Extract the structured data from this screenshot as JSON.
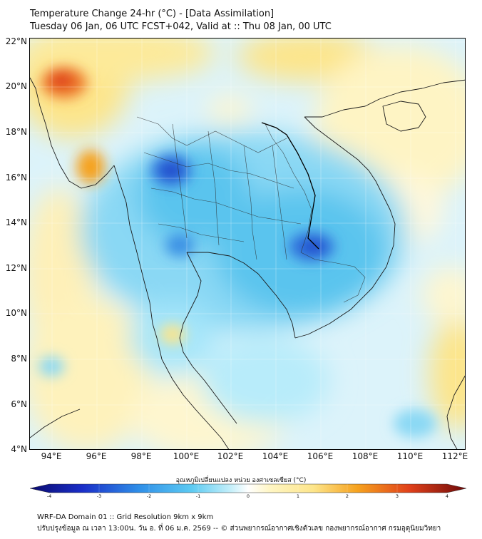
{
  "title_line1": "Temperature Change 24-hr (°C) - [Data Assimilation]",
  "title_line2": "Tuesday 06 Jan, 06 UTC FCST+042, Valid at :: Thu 08 Jan, 00 UTC",
  "lat_labels": [
    "22°N",
    "20°N",
    "18°N",
    "16°N",
    "14°N",
    "12°N",
    "10°N",
    "8°N",
    "6°N",
    "4°N"
  ],
  "lon_labels": [
    "94°E",
    "96°E",
    "98°E",
    "100°E",
    "102°E",
    "104°E",
    "106°E",
    "108°E",
    "110°E",
    "112°E"
  ],
  "colorbar_title": "อุณหภูมิเปลี่ยนแปลง หน่วย องศาเซลเซียส (°C)",
  "colorbar_ticks": [
    "-4",
    "-3",
    "-2",
    "-1",
    "0",
    "1",
    "2",
    "3",
    "4"
  ],
  "footer_line1": "WRF-DA Domain 01 :: Grid Resolution 9km x 9km",
  "footer_line2": "ปรับปรุงข้อมูล ณ เวลา 13:00น. วัน อ. ที่ 06 ม.ค. 2569 -- © ส่วนพยากรณ์อากาศเชิงตัวเลข กองพยากรณ์อากาศ กรมอุตุนิยมวิทยา",
  "map_extent": {
    "lon": [
      93,
      112.5
    ],
    "lat": [
      4,
      22.2
    ]
  },
  "colorbar_range": [
    -4,
    4
  ],
  "colors": {
    "cold_strong": "#1e40c8",
    "cold": "#3ab4ea",
    "cool": "#a6e6fa",
    "neutral": "#ffffff",
    "warm": "#fde58a",
    "hot": "#f6a21e",
    "very_hot": "#e0401a"
  }
}
